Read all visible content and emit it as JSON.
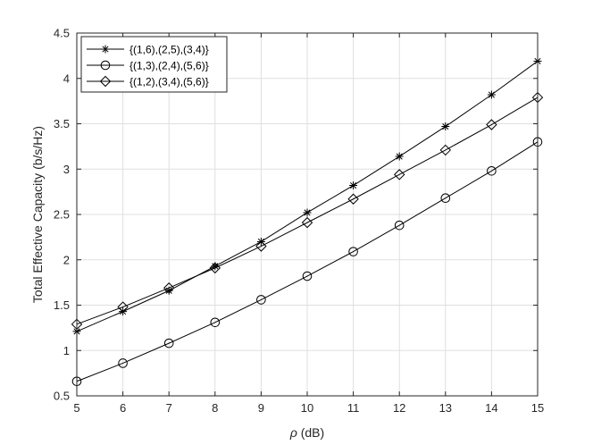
{
  "chart_data": {
    "type": "line",
    "xlabel_symbol": "ρ",
    "xlabel_unit": " (dB)",
    "ylabel": "Total Effective Capacity (b/s/Hz)",
    "xlim": [
      5,
      15
    ],
    "ylim": [
      0.5,
      4.5
    ],
    "grid": true,
    "legend_position": "top-left",
    "x_ticks": [
      "5",
      "6",
      "7",
      "8",
      "9",
      "10",
      "11",
      "12",
      "13",
      "14",
      "15"
    ],
    "y_ticks": [
      "0.5",
      "1",
      "1.5",
      "2",
      "2.5",
      "3",
      "3.5",
      "4",
      "4.5"
    ],
    "x": [
      5,
      6,
      7,
      8,
      9,
      10,
      11,
      12,
      13,
      14,
      15
    ],
    "series": [
      {
        "name": "{(1,6),(2,5),(3,4)}",
        "marker": "asterisk",
        "values": [
          1.21,
          1.43,
          1.66,
          1.93,
          2.2,
          2.52,
          2.82,
          3.14,
          3.47,
          3.82,
          4.19
        ]
      },
      {
        "name": "{(1,3),(2,4),(5,6)}",
        "marker": "circle",
        "values": [
          0.66,
          0.86,
          1.08,
          1.31,
          1.56,
          1.82,
          2.09,
          2.38,
          2.68,
          2.98,
          3.3
        ]
      },
      {
        "name": "{(1,2),(3,4),(5,6)}",
        "marker": "diamond",
        "values": [
          1.29,
          1.48,
          1.69,
          1.91,
          2.15,
          2.41,
          2.67,
          2.94,
          3.21,
          3.49,
          3.79
        ]
      }
    ],
    "colors": {
      "line": "#000000",
      "grid": "#dfdfdf",
      "axis": "#262626"
    }
  }
}
